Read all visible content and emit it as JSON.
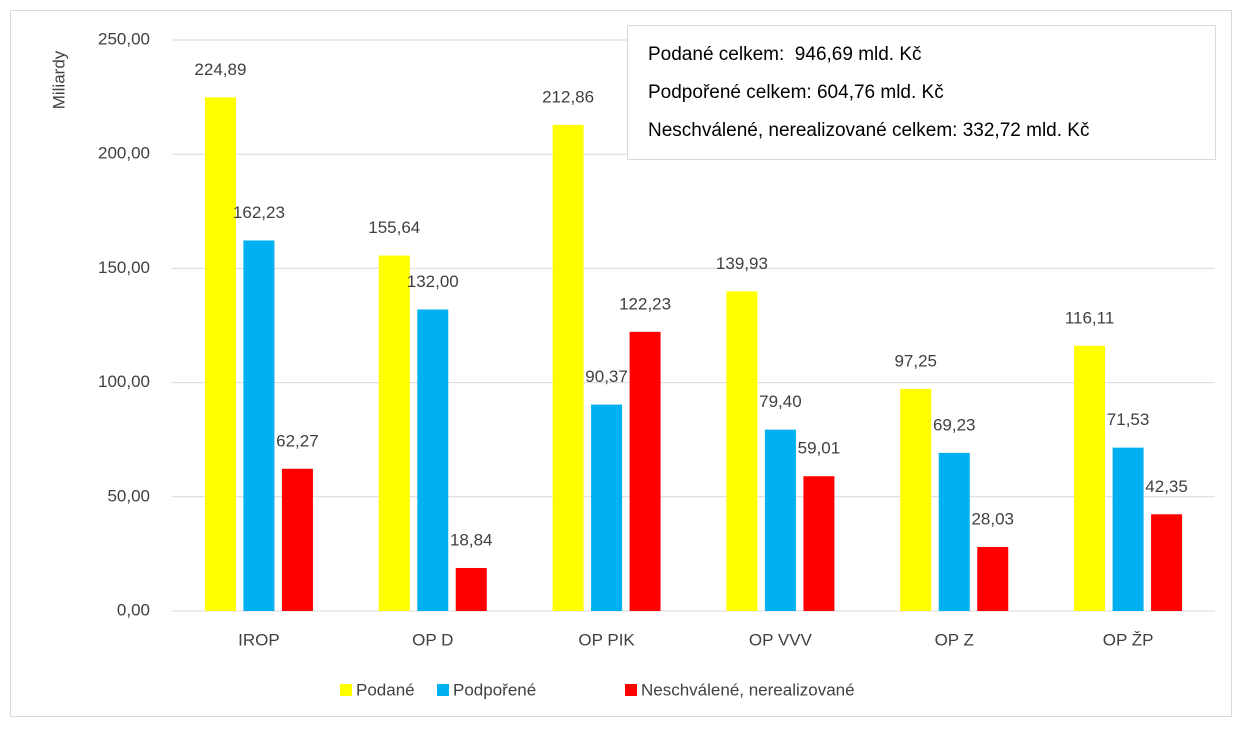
{
  "chart_data": {
    "type": "bar",
    "y_label": "Miliardy",
    "categories": [
      "IROP",
      "OP D",
      "OP PIK",
      "OP VVV",
      "OP Z",
      "OP ŽP"
    ],
    "series": [
      {
        "name": "Podané",
        "color": "#ffff00",
        "values": [
          224.89,
          155.64,
          212.86,
          139.93,
          97.25,
          116.11
        ],
        "value_labels": [
          "224,89",
          "155,64",
          "212,86",
          "139,93",
          "97,25",
          "116,11"
        ]
      },
      {
        "name": "Podpořené",
        "color": "#00b0f0",
        "values": [
          162.23,
          132.0,
          90.37,
          79.4,
          69.23,
          71.53
        ],
        "value_labels": [
          "162,23",
          "132,00",
          "90,37",
          "79,40",
          "69,23",
          "71,53"
        ]
      },
      {
        "name": "Neschválené, nerealizované",
        "color": "#ff0000",
        "values": [
          62.27,
          18.84,
          122.23,
          59.01,
          28.03,
          42.35
        ],
        "value_labels": [
          "62,27",
          "18,84",
          "122,23",
          "59,01",
          "28,03",
          "42,35"
        ]
      }
    ],
    "ylim": [
      0,
      250
    ],
    "yticks": [
      {
        "value": 0,
        "label": "0,00"
      },
      {
        "value": 50,
        "label": "50,00"
      },
      {
        "value": 100,
        "label": "100,00"
      },
      {
        "value": 150,
        "label": "150,00"
      },
      {
        "value": 200,
        "label": "200,00"
      },
      {
        "value": 250,
        "label": "250,00"
      }
    ],
    "grid": true,
    "legend": "bottom",
    "annotations": [
      "Podané celkem:  946,69 mld. Kč",
      "Podpořené celkem: 604,76 mld. Kč",
      "Neschválené, nerealizované celkem: 332,72 mld. Kč"
    ]
  }
}
